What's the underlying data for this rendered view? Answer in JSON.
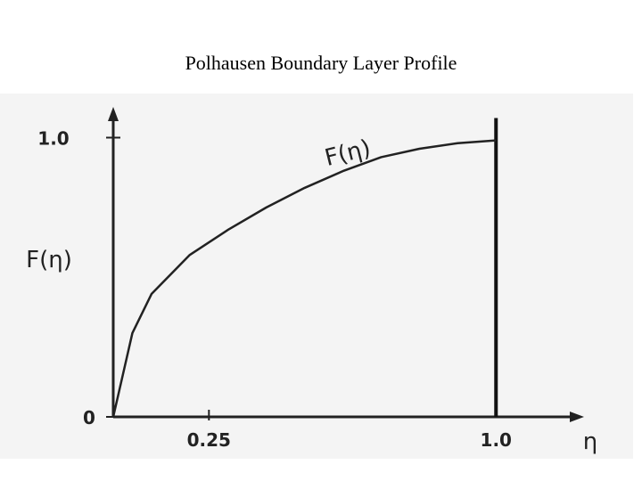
{
  "chart_data": {
    "type": "line",
    "title": "Polhausen Boundary Layer Profile",
    "x_label": "η",
    "y_label": "F(η)",
    "annotation": "F(η)",
    "x": [
      0,
      0.05,
      0.1,
      0.2,
      0.3,
      0.4,
      0.5,
      0.6,
      0.7,
      0.8,
      0.9,
      1.0
    ],
    "series": [
      {
        "name": "F(η)",
        "color": "#222222",
        "values": [
          0,
          0.3,
          0.44,
          0.58,
          0.67,
          0.75,
          0.82,
          0.88,
          0.93,
          0.96,
          0.98,
          0.99
        ]
      }
    ],
    "xlim": [
      0,
      1.23
    ],
    "ylim": [
      0,
      1.11
    ],
    "xticks": [
      0.25,
      {
        "value": 1,
        "label": "1.0"
      }
    ],
    "yticks": [
      0,
      {
        "value": 1,
        "label": "1.0"
      }
    ]
  }
}
